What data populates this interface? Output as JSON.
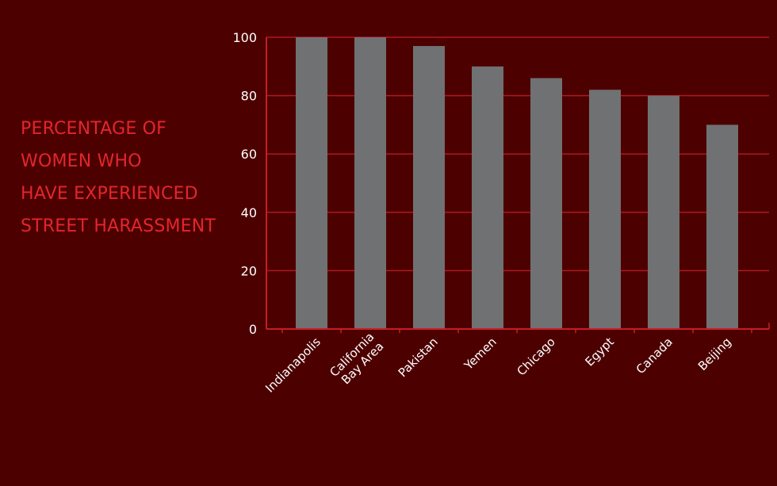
{
  "chart_data": {
    "type": "bar",
    "title_lines": [
      "PERCENTAGE OF",
      "WOMEN WHO",
      "HAVE EXPERIENCED",
      "STREET HARASSMENT"
    ],
    "categories": [
      [
        "Indianapolis"
      ],
      [
        "California",
        "Bay Area"
      ],
      [
        "Pakistan"
      ],
      [
        "Yemen"
      ],
      [
        "Chicago"
      ],
      [
        "Egypt"
      ],
      [
        "Canada"
      ],
      [
        "Beijing"
      ]
    ],
    "values": [
      100,
      100,
      97,
      90,
      86,
      82,
      80,
      70
    ],
    "ylim": [
      0,
      100
    ],
    "yticks": [
      0,
      20,
      40,
      60,
      80,
      100
    ],
    "grid": true,
    "colors": {
      "background": "#4d0000",
      "bar": "#707173",
      "grid": "#b01820",
      "axis": "#c81d25",
      "title": "#e3262b",
      "tick_text": "#ffffff"
    }
  }
}
